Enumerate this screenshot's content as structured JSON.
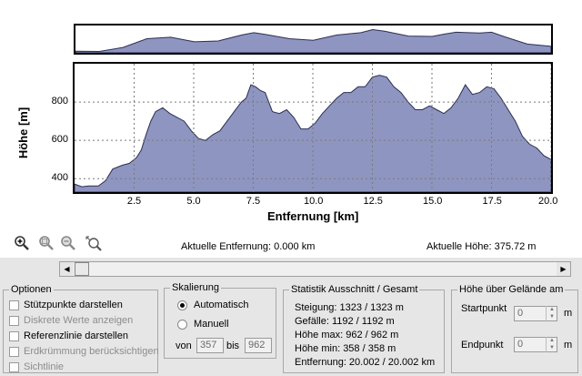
{
  "chart_data": [
    {
      "type": "area",
      "ylabel": "Höhe [m]",
      "xlabel": "Entfernung [km]",
      "xlim": [
        0.0,
        20.0
      ],
      "ylim": [
        330,
        1000
      ],
      "xticks": [
        "2.5",
        "5.0",
        "7.5",
        "10.0",
        "12.5",
        "15.0",
        "17.5",
        "20.0"
      ],
      "yticks": [
        "400",
        "600",
        "800"
      ],
      "grid": true,
      "x": [
        0.0,
        0.3,
        0.6,
        1.0,
        1.3,
        1.6,
        2.0,
        2.3,
        2.6,
        2.8,
        3.0,
        3.2,
        3.4,
        3.7,
        4.0,
        4.3,
        4.6,
        4.9,
        5.2,
        5.5,
        5.8,
        6.1,
        6.4,
        6.7,
        7.0,
        7.2,
        7.4,
        7.6,
        7.8,
        8.0,
        8.3,
        8.6,
        8.9,
        9.2,
        9.5,
        9.8,
        10.1,
        10.4,
        10.7,
        11.0,
        11.3,
        11.6,
        11.9,
        12.2,
        12.5,
        12.8,
        13.1,
        13.4,
        13.7,
        14.0,
        14.3,
        14.6,
        14.9,
        15.2,
        15.5,
        15.8,
        16.1,
        16.4,
        16.7,
        17.0,
        17.3,
        17.6,
        17.9,
        18.2,
        18.5,
        18.8,
        19.1,
        19.4,
        19.7,
        20.0
      ],
      "y": [
        372,
        358,
        362,
        362,
        390,
        450,
        470,
        480,
        510,
        550,
        630,
        700,
        750,
        770,
        740,
        720,
        700,
        650,
        610,
        600,
        630,
        650,
        700,
        750,
        800,
        820,
        890,
        880,
        860,
        850,
        750,
        740,
        760,
        720,
        660,
        660,
        690,
        740,
        780,
        820,
        850,
        850,
        880,
        880,
        930,
        940,
        930,
        880,
        850,
        800,
        760,
        760,
        780,
        760,
        740,
        770,
        820,
        890,
        840,
        850,
        880,
        870,
        820,
        760,
        700,
        620,
        580,
        560,
        520,
        500
      ]
    },
    {
      "type": "area",
      "description_free": true,
      "x": [
        0.0,
        1.0,
        2.0,
        3.0,
        4.0,
        5.0,
        6.0,
        7.0,
        7.5,
        8.0,
        9.0,
        10.0,
        11.0,
        12.0,
        12.5,
        13.0,
        14.0,
        15.0,
        15.5,
        16.0,
        17.0,
        17.5,
        18.0,
        19.0,
        20.0
      ],
      "y": [
        370,
        365,
        470,
        700,
        740,
        620,
        640,
        800,
        860,
        810,
        700,
        660,
        800,
        860,
        940,
        900,
        770,
        760,
        820,
        870,
        850,
        870,
        760,
        560,
        500
      ],
      "ylim": [
        330,
        1000
      ]
    }
  ],
  "toolbar": {
    "icons": [
      "zoom-in-icon",
      "zoom-region-icon",
      "zoom-out-icon",
      "zoom-reset-icon"
    ]
  },
  "readouts": {
    "distance": "Aktuelle Entfernung: 0.000 km",
    "height": "Aktuelle Höhe: 375.72 m"
  },
  "options": {
    "title": "Optionen",
    "items": [
      {
        "label": "Stützpunkte darstellen",
        "checked": false,
        "disabled": false
      },
      {
        "label": "Diskrete Werte anzeigen",
        "checked": false,
        "disabled": true
      },
      {
        "label": "Referenzlinie darstellen",
        "checked": false,
        "disabled": false
      },
      {
        "label": "Erdkrümmung berücksichtigen",
        "checked": false,
        "disabled": true
      },
      {
        "label": "Sichtlinie",
        "checked": false,
        "disabled": true
      }
    ]
  },
  "scaling": {
    "title": "Skalierung",
    "auto_label": "Automatisch",
    "manual_label": "Manuell",
    "from_label": "von",
    "to_label": "bis",
    "from_value": "357",
    "to_value": "962",
    "selected": "auto"
  },
  "stats": {
    "title": "Statistik   Ausschnitt / Gesamt",
    "lines": [
      "Steigung: 1323 / 1323 m",
      "Gefälle: 1192 / 1192 m",
      "Höhe max: 962 / 962 m",
      "Höhe min: 358 / 358 m",
      "Entfernung: 20.002 / 20.002 km"
    ]
  },
  "terrain": {
    "title": "Höhe über Gelände am",
    "start_label": "Startpunkt",
    "end_label": "Endpunkt",
    "start_value": "0",
    "end_value": "0",
    "unit": "m"
  },
  "colors": {
    "fill": "#8e95c0",
    "stroke": "#2c2f52",
    "grid": "#7a7a7a"
  }
}
